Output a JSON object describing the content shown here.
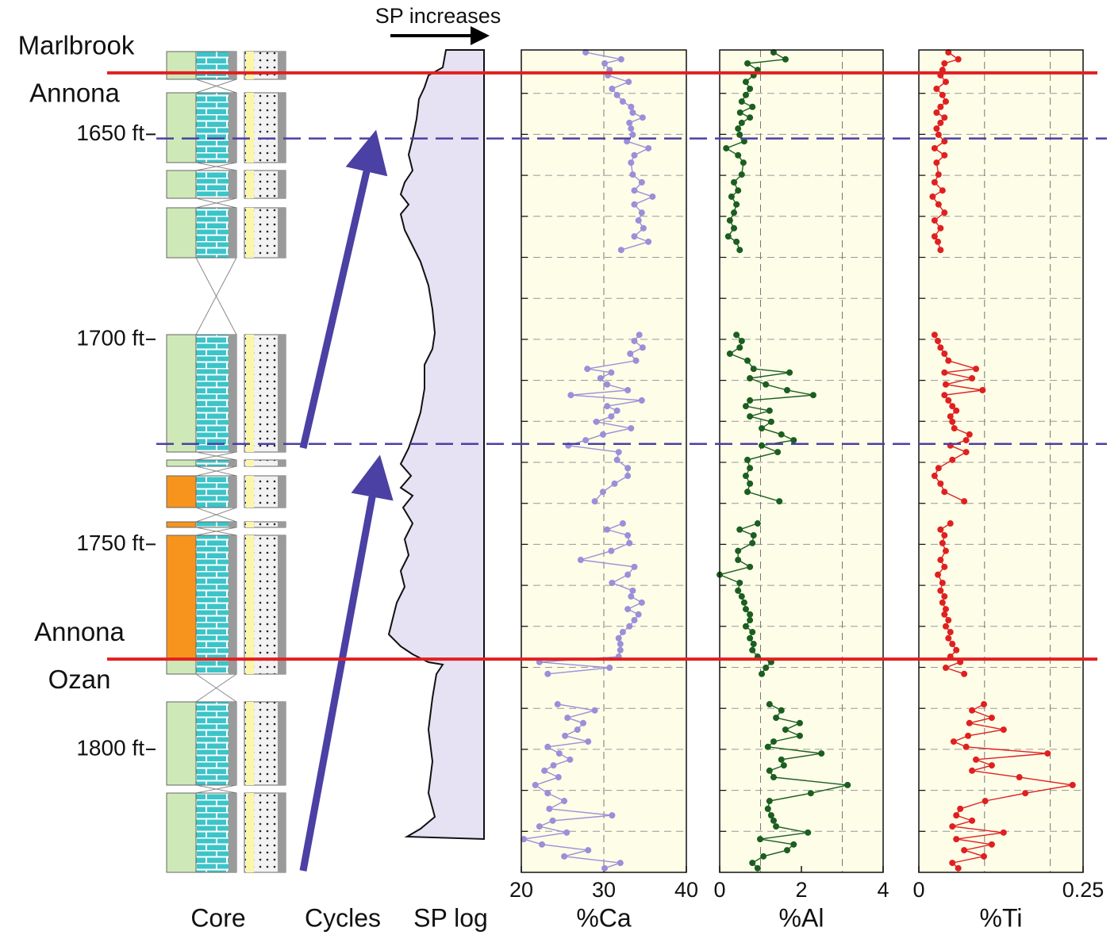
{
  "chart_data": {
    "type": "profile",
    "ylim": [
      1630,
      1830
    ],
    "yticks": [
      {
        "value": 1650,
        "label": "1650 ft"
      },
      {
        "value": 1700,
        "label": "1700 ft"
      },
      {
        "value": 1750,
        "label": "1750 ft"
      },
      {
        "value": 1800,
        "label": "1800 ft"
      }
    ],
    "ygrid": [
      1640,
      1650,
      1660,
      1670,
      1680,
      1690,
      1700,
      1710,
      1720,
      1730,
      1740,
      1750,
      1760,
      1770,
      1780,
      1790,
      1800,
      1810,
      1820
    ],
    "depths": [
      1630,
      1631.7,
      1632.7,
      1634.3,
      1635.6,
      1637.2,
      1638.9,
      1640.4,
      1642,
      1643.3,
      1644.7,
      1645.9,
      1647.2,
      1648.6,
      1650.1,
      1651.7,
      1653.4,
      1655.1,
      1656.9,
      1659.8,
      1661.7,
      1663.7,
      1665.2,
      1667.1,
      1669.1,
      1671,
      1672.9,
      1674.9,
      1676.2,
      1678.2,
      null,
      1698.9,
      1700.4,
      1702,
      1703.5,
      1705.2,
      1707.2,
      1708.1,
      1709.5,
      1711,
      1712.4,
      1713.6,
      1714.9,
      1716.3,
      1717.4,
      1718.8,
      1720.1,
      1721.7,
      1723.2,
      1724.6,
      1725.9,
      1727.5,
      1729.4,
      1731.4,
      1733.3,
      1735.2,
      1737.2,
      1739.5,
      null,
      1744.9,
      1746.4,
      1747.8,
      1749.7,
      1751.6,
      1753.8,
      1755.5,
      1757.4,
      1759.4,
      1761.3,
      1762.7,
      1764.2,
      1765.8,
      1767.1,
      1768.5,
      1770,
      1771.4,
      1772.9,
      1774.3,
      1775.8,
      1777.4,
      1778.7,
      1780.1,
      1781.6,
      null,
      1789,
      1790.5,
      1792.3,
      1793.6,
      1795.2,
      1796.7,
      1798.1,
      1799.4,
      1801,
      1802.5,
      1803.9,
      1805.2,
      1806.8,
      1808.7,
      1810.7,
      1812.6,
      1814.5,
      1816.1,
      1817.4,
      1818.8,
      1820.3,
      1821.9,
      1823.2,
      1824.6,
      1826.1,
      1827.7,
      1829
    ],
    "series": [
      {
        "xlabel": "%Ca",
        "color": "#9a8fd8",
        "xlim": [
          20,
          40
        ],
        "xticks": [
          20,
          30,
          40
        ],
        "xgrid": [
          30
        ],
        "values": [
          27.8,
          32.1,
          30.1,
          30.7,
          30.5,
          33,
          31,
          31.6,
          32.3,
          33.3,
          33.5,
          34.7,
          33.1,
          33.3,
          33.5,
          32.8,
          35.4,
          33.7,
          33.3,
          33.5,
          34.6,
          33.7,
          35.9,
          33.7,
          34.6,
          34.2,
          34.8,
          33.7,
          35.4,
          32.1,
          null,
          34.3,
          33.7,
          34.7,
          33.2,
          33.9,
          28,
          30.9,
          29.6,
          30.4,
          32.9,
          26,
          34.6,
          30.4,
          31.6,
          30.9,
          29.1,
          33.3,
          29.9,
          27.8,
          25.7,
          31.8,
          31.6,
          32.9,
          32.9,
          31.3,
          29.9,
          28.9,
          null,
          32.3,
          30.4,
          32.9,
          33.1,
          30.9,
          27.2,
          33.7,
          32.9,
          31,
          33.5,
          33.3,
          34.6,
          32.9,
          34.2,
          33.7,
          33.1,
          32.3,
          31.8,
          32,
          32,
          31.8,
          22.2,
          30.7,
          23.2,
          null,
          24.4,
          28.9,
          25.6,
          27.5,
          26.8,
          25.3,
          28.1,
          23.2,
          24.6,
          25.9,
          23.9,
          22.8,
          24.5,
          21.7,
          23.2,
          25.2,
          23.4,
          31,
          23.8,
          22.2,
          25.5,
          20.3,
          22.5,
          28.1,
          25.2,
          32,
          30.1
        ]
      },
      {
        "xlabel": "%Al",
        "color": "#1b5e20",
        "xlim": [
          0,
          4
        ],
        "xticks": [
          0,
          2,
          4
        ],
        "xgrid": [
          1,
          3
        ],
        "values": [
          1.32,
          1.61,
          0.68,
          0.93,
          0.83,
          0.64,
          0.74,
          0.64,
          0.54,
          0.8,
          0.5,
          0.74,
          0.54,
          0.45,
          0.49,
          0.6,
          0.16,
          0.45,
          0.58,
          0.54,
          0.35,
          0.45,
          0.29,
          0.41,
          0.35,
          0.25,
          0.35,
          0.21,
          0.41,
          0.49,
          null,
          0.41,
          0.54,
          0.49,
          0.25,
          0.68,
          0.83,
          1.71,
          0.74,
          1.13,
          1.65,
          2.29,
          0.74,
          0.64,
          1.22,
          0.74,
          1.26,
          1.03,
          1.51,
          1.81,
          1.03,
          1.42,
          0.68,
          0.74,
          0.64,
          0.74,
          0.68,
          1.46,
          null,
          0.93,
          0.49,
          0.83,
          0.8,
          0.45,
          0.45,
          0.74,
          0,
          0.49,
          0.45,
          0.54,
          0.6,
          0.64,
          0.74,
          0.74,
          0.64,
          0.8,
          0.74,
          0.83,
          0.8,
          0.93,
          1.26,
          1.13,
          1.03,
          null,
          1.22,
          1.51,
          1.38,
          1.96,
          1.61,
          1.96,
          1.32,
          1.18,
          2.49,
          1.51,
          1.57,
          1.22,
          1.32,
          3.13,
          2.23,
          1.22,
          1.18,
          1.26,
          1.32,
          1.38,
          2.16,
          0.99,
          1.81,
          1.65,
          1.07,
          0.8,
          0.93
        ]
      },
      {
        "xlabel": "%Ti",
        "color": "#e02020",
        "xlim": [
          0,
          0.25
        ],
        "xticks": [
          0,
          0.25
        ],
        "xgrid": [
          0.1,
          0.2
        ],
        "values": [
          0.045,
          0.06,
          0.039,
          0.036,
          0.033,
          0.041,
          0.027,
          0.036,
          0.041,
          0.033,
          0.027,
          0.039,
          0.033,
          0.027,
          0.03,
          0.039,
          0.024,
          0.039,
          0.027,
          0.03,
          0.024,
          0.036,
          0.021,
          0.03,
          0.039,
          0.024,
          0.033,
          0.024,
          0.029,
          0.033,
          null,
          0.024,
          0.029,
          0.033,
          0.039,
          0.045,
          0.087,
          0.039,
          0.081,
          0.041,
          0.097,
          0.039,
          0.045,
          0.051,
          0.057,
          0.048,
          0.051,
          0.054,
          0.077,
          0.072,
          0.048,
          0.072,
          0.051,
          0.03,
          0.024,
          0.033,
          0.039,
          0.069,
          null,
          0.048,
          0.033,
          0.039,
          0.036,
          0.041,
          0.033,
          0.039,
          0.029,
          0.036,
          0.033,
          0.039,
          0.036,
          0.041,
          0.039,
          0.045,
          0.041,
          0.048,
          0.045,
          0.051,
          0.057,
          0.048,
          0.063,
          0.041,
          0.069,
          null,
          0.099,
          0.081,
          0.111,
          0.077,
          0.129,
          0.075,
          0.053,
          0.072,
          0.196,
          0.087,
          0.111,
          0.081,
          0.153,
          0.234,
          0.162,
          0.101,
          0.063,
          0.057,
          0.081,
          0.051,
          0.129,
          0.057,
          0.111,
          0.069,
          0.099,
          0.051,
          0.06
        ]
      }
    ],
    "boundaries": [
      {
        "depth": 1635,
        "above": "Marlbrook",
        "below": "Annona",
        "color": "#e02020"
      },
      {
        "depth": 1778,
        "above": "Annona",
        "below": "Ozan",
        "color": "#e02020"
      }
    ],
    "cycle_boundaries": [
      1651,
      1725.5
    ],
    "columns": [
      "Core",
      "Cycles",
      "SP log"
    ],
    "sp_direction": "SP increases"
  }
}
